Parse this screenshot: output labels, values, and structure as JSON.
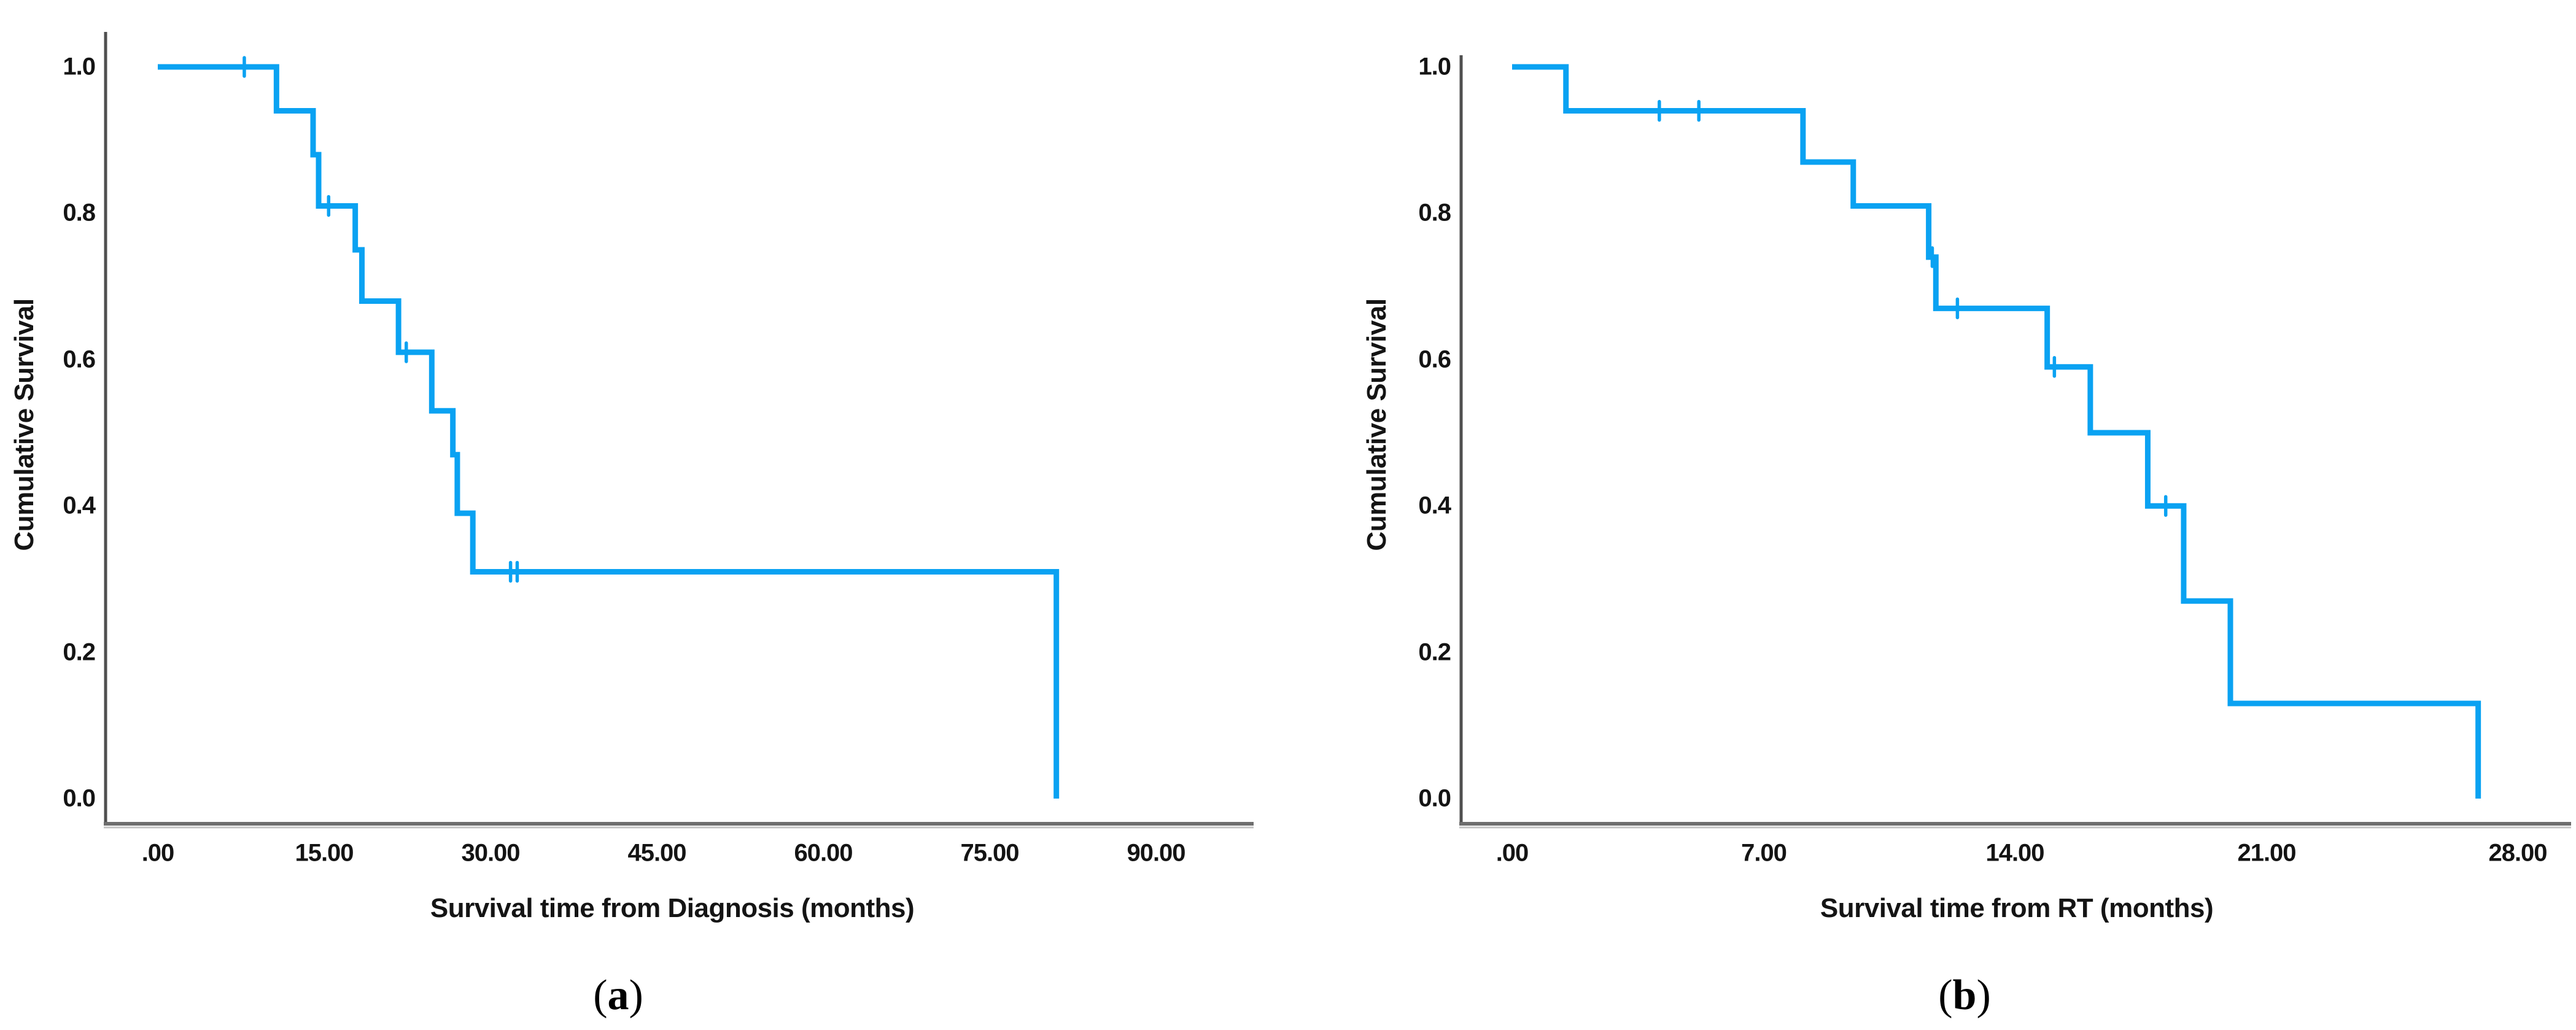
{
  "figure_type": "Kaplan-Meier cumulative survival curves, two panels",
  "accent_color": "#0aa2f2",
  "axis_color": "#6e6e6e",
  "panels": [
    {
      "paren_open": "(",
      "letter": "a",
      "paren_close": ")",
      "y_axis_title": "Cumulative Survival",
      "x_axis_title": "Survival time from Diagnosis (months)",
      "y_tick_labels": [
        "1.0",
        "0.8",
        "0.6",
        "0.4",
        "0.2",
        "0.0"
      ],
      "x_tick_labels": [
        ".00",
        "15.00",
        "30.00",
        "45.00",
        "60.00",
        "75.00",
        "90.00"
      ]
    },
    {
      "paren_open": "(",
      "letter": "b",
      "paren_close": ")",
      "y_axis_title": "Cumulative Survival",
      "x_axis_title": "Survival time from RT (months)",
      "y_tick_labels": [
        "1.0",
        "0.8",
        "0.6",
        "0.4",
        "0.2",
        "0.0"
      ],
      "x_tick_labels": [
        ".00",
        "7.00",
        "14.00",
        "21.00",
        "28.00"
      ]
    }
  ],
  "chart_data": [
    {
      "type": "line",
      "subtype": "kaplan_meier_step",
      "panel": "a",
      "title": "",
      "xlabel": "Survival time from Diagnosis (months)",
      "ylabel": "Cumulative Survival",
      "xlim": [
        0,
        98
      ],
      "ylim": [
        0,
        1.0
      ],
      "x_tick_values": [
        0,
        15,
        30,
        45,
        60,
        75,
        90
      ],
      "y_tick_values": [
        1.0,
        0.8,
        0.6,
        0.4,
        0.2,
        0.0
      ],
      "grid": false,
      "legend": "none",
      "line_color": "#0aa2f2",
      "steps": [
        {
          "t": 0,
          "s": 1.0
        },
        {
          "t": 10.7,
          "s": 0.94
        },
        {
          "t": 14.0,
          "s": 0.88
        },
        {
          "t": 14.5,
          "s": 0.81
        },
        {
          "t": 17.8,
          "s": 0.75
        },
        {
          "t": 18.4,
          "s": 0.68
        },
        {
          "t": 21.7,
          "s": 0.61
        },
        {
          "t": 24.7,
          "s": 0.53
        },
        {
          "t": 26.6,
          "s": 0.47
        },
        {
          "t": 27.0,
          "s": 0.39
        },
        {
          "t": 28.4,
          "s": 0.31
        },
        {
          "t": 81.0,
          "s": 0.0
        }
      ],
      "censor_marks": [
        {
          "t": 7.8,
          "s": 1.0
        },
        {
          "t": 15.4,
          "s": 0.81
        },
        {
          "t": 22.4,
          "s": 0.61
        },
        {
          "t": 31.8,
          "s": 0.31
        },
        {
          "t": 32.4,
          "s": 0.31
        }
      ]
    },
    {
      "type": "line",
      "subtype": "kaplan_meier_step",
      "panel": "b",
      "title": "",
      "xlabel": "Survival time from RT (months)",
      "ylabel": "Cumulative Survival",
      "xlim": [
        0,
        29.5
      ],
      "ylim": [
        0,
        1.0
      ],
      "x_tick_values": [
        0,
        7,
        14,
        21,
        28
      ],
      "y_tick_values": [
        1.0,
        0.8,
        0.6,
        0.4,
        0.2,
        0.0
      ],
      "grid": false,
      "legend": "none",
      "line_color": "#0aa2f2",
      "steps": [
        {
          "t": 0,
          "s": 1.0
        },
        {
          "t": 1.5,
          "s": 0.94
        },
        {
          "t": 8.1,
          "s": 0.87
        },
        {
          "t": 9.5,
          "s": 0.81
        },
        {
          "t": 11.6,
          "s": 0.74
        },
        {
          "t": 11.8,
          "s": 0.67
        },
        {
          "t": 14.9,
          "s": 0.59
        },
        {
          "t": 16.1,
          "s": 0.5
        },
        {
          "t": 17.7,
          "s": 0.4
        },
        {
          "t": 18.7,
          "s": 0.27
        },
        {
          "t": 20.0,
          "s": 0.13
        },
        {
          "t": 26.9,
          "s": 0.0
        }
      ],
      "censor_marks": [
        {
          "t": 4.1,
          "s": 0.94
        },
        {
          "t": 5.2,
          "s": 0.94
        },
        {
          "t": 11.7,
          "s": 0.74
        },
        {
          "t": 12.4,
          "s": 0.67
        },
        {
          "t": 15.1,
          "s": 0.59
        },
        {
          "t": 18.2,
          "s": 0.4
        }
      ]
    }
  ]
}
